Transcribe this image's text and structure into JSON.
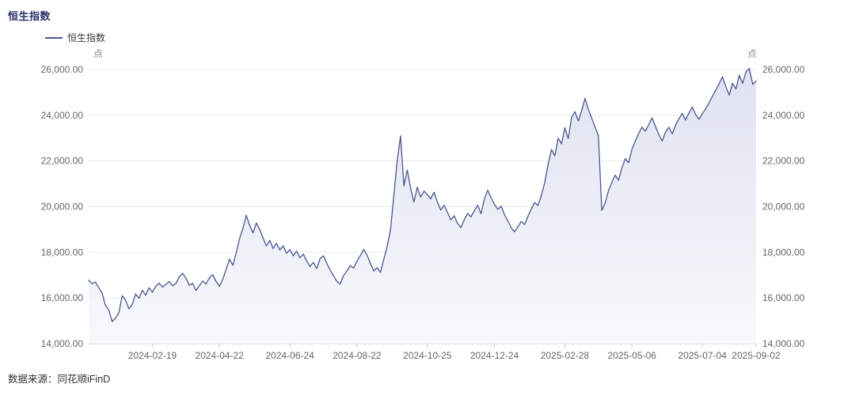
{
  "page": {
    "title": "恒生指数",
    "source": "数据来源：同花顺iFinD"
  },
  "legend": {
    "label": "恒生指数"
  },
  "chart_data": {
    "type": "area",
    "title": "恒生指数",
    "series_name": "恒生指数",
    "unit_left": "点",
    "unit_right": "点",
    "ylim": [
      14000,
      26000
    ],
    "y_ticks": [
      14000,
      16000,
      18000,
      20000,
      22000,
      24000,
      26000
    ],
    "y_tick_labels": [
      "14,000.00",
      "16,000.00",
      "18,000.00",
      "20,000.00",
      "22,000.00",
      "24,000.00",
      "26,000.00"
    ],
    "x_tick_labels": [
      "2024-02-19",
      "2024-04-22",
      "2024-06-24",
      "2024-08-22",
      "2024-10-25",
      "2024-12-24",
      "2025-02-28",
      "2025-05-06",
      "2025-07-04",
      "2025-09-02"
    ],
    "x_tick_indices": [
      19,
      39,
      60,
      80,
      101,
      121,
      142,
      162,
      183,
      199
    ],
    "grid": true,
    "legend_position": "top-left",
    "line_color": "#4a5690",
    "area_top_color": "#dde1f0",
    "area_bottom_color": "#f7f8fc",
    "grid_color": "#e8e8ee",
    "axis_color": "#cccccc",
    "label_color": "#666666",
    "values": [
      16780,
      16620,
      16700,
      16450,
      16220,
      15680,
      15480,
      14960,
      15120,
      15350,
      16100,
      15900,
      15530,
      15720,
      16180,
      15990,
      16340,
      16120,
      16450,
      16250,
      16510,
      16650,
      16480,
      16590,
      16720,
      16540,
      16630,
      16920,
      17080,
      16870,
      16560,
      16640,
      16330,
      16540,
      16740,
      16610,
      16880,
      17020,
      16720,
      16510,
      16820,
      17260,
      17700,
      17430,
      17980,
      18600,
      19050,
      19620,
      19180,
      18850,
      19280,
      19000,
      18620,
      18280,
      18520,
      18160,
      18390,
      18100,
      18280,
      17960,
      18120,
      17850,
      18050,
      17760,
      17920,
      17620,
      17380,
      17560,
      17290,
      17720,
      17850,
      17520,
      17220,
      16980,
      16730,
      16610,
      16980,
      17180,
      17420,
      17310,
      17620,
      17850,
      18120,
      17880,
      17520,
      17180,
      17330,
      17120,
      17690,
      18250,
      19000,
      20500,
      22000,
      23100,
      20900,
      21600,
      20800,
      20200,
      20850,
      20420,
      20680,
      20520,
      20340,
      20630,
      20180,
      19850,
      20060,
      19740,
      19420,
      19600,
      19260,
      19080,
      19430,
      19700,
      19550,
      19820,
      20060,
      19690,
      20340,
      20720,
      20380,
      20100,
      19880,
      20020,
      19640,
      19380,
      19070,
      18900,
      19120,
      19350,
      19220,
      19580,
      19900,
      20180,
      20050,
      20500,
      21050,
      21850,
      22500,
      22220,
      23000,
      22750,
      23450,
      22980,
      23900,
      24150,
      23750,
      24200,
      24740,
      24260,
      23880,
      23480,
      23100,
      19830,
      20150,
      20700,
      21050,
      21380,
      21150,
      21700,
      22100,
      21920,
      22520,
      22860,
      23200,
      23480,
      23300,
      23580,
      23880,
      23520,
      23160,
      22870,
      23250,
      23480,
      23180,
      23560,
      23850,
      24080,
      23790,
      24100,
      24360,
      24030,
      23820,
      24070,
      24290,
      24550,
      24830,
      25100,
      25380,
      25680,
      25250,
      24880,
      25400,
      25150,
      25750,
      25400,
      25900,
      26050,
      25350,
      25500
    ]
  }
}
